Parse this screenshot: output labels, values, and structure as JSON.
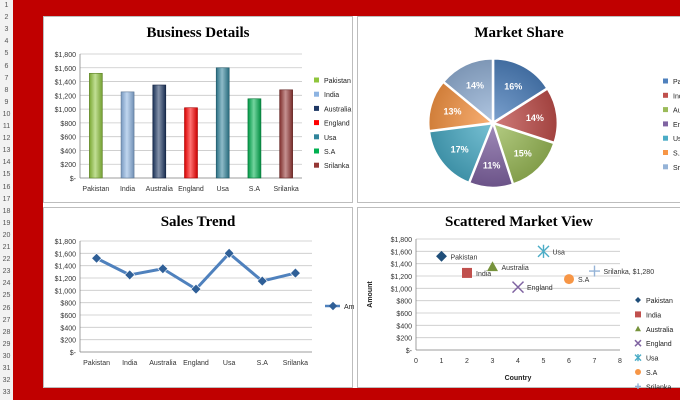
{
  "row_numbers": [
    "1",
    "2",
    "3",
    "4",
    "5",
    "6",
    "7",
    "8",
    "9",
    "10",
    "11",
    "12",
    "13",
    "14",
    "15",
    "16",
    "17",
    "18",
    "19",
    "20",
    "21",
    "22",
    "23",
    "24",
    "25",
    "26",
    "27",
    "28",
    "29",
    "30",
    "31",
    "32",
    "33"
  ],
  "chart_data": [
    {
      "type": "bar",
      "title": "Business Details",
      "categories": [
        "Pakistan",
        "India",
        "Australia",
        "England",
        "Usa",
        "S.A",
        "Srilanka"
      ],
      "values": [
        1520,
        1250,
        1350,
        1020,
        1600,
        1150,
        1280
      ],
      "colors": [
        "#8fc53c",
        "#8db4e2",
        "#1f3864",
        "#ff0000",
        "#31849b",
        "#00b050",
        "#953735"
      ],
      "ylim": [
        0,
        1800
      ],
      "yticks": [
        "$-",
        "$200",
        "$400",
        "$600",
        "$800",
        "$1,000",
        "$1,200",
        "$1,400",
        "$1,600",
        "$1,800"
      ],
      "grid": true,
      "legend_position": "right"
    },
    {
      "type": "pie",
      "title": "Market Share",
      "categories": [
        "Pakistan",
        "India",
        "Australia",
        "England",
        "Usa",
        "S.A",
        "Srilanka"
      ],
      "values": [
        16,
        14,
        15,
        11,
        17,
        13,
        14
      ],
      "labels": [
        "16%",
        "14%",
        "15%",
        "11%",
        "17%",
        "13%",
        "14%"
      ],
      "colors": [
        "#4f81bd",
        "#c0504d",
        "#9bbb59",
        "#8064a2",
        "#4bacc6",
        "#f79646",
        "#95b3d7"
      ],
      "legend_position": "right"
    },
    {
      "type": "line",
      "title": "Sales Trend",
      "categories": [
        "Pakistan",
        "India",
        "Australia",
        "England",
        "Usa",
        "S.A",
        "Srilanka"
      ],
      "series": [
        {
          "name": "Amount",
          "values": [
            1520,
            1250,
            1350,
            1020,
            1600,
            1150,
            1280
          ],
          "color": "#4f81bd"
        }
      ],
      "ylim": [
        0,
        1800
      ],
      "yticks": [
        "$-",
        "$200",
        "$400",
        "$600",
        "$800",
        "$1,000",
        "$1,200",
        "$1,400",
        "$1,600",
        "$1,800"
      ],
      "grid": true,
      "legend_position": "right"
    },
    {
      "type": "scatter",
      "title": "Scattered Market View",
      "xlabel": "Country",
      "ylabel": "Amount",
      "xlim": [
        0,
        8
      ],
      "ylim": [
        0,
        1800
      ],
      "xticks": [
        "0",
        "1",
        "2",
        "3",
        "4",
        "5",
        "6",
        "7",
        "8"
      ],
      "yticks": [
        "$-",
        "$200",
        "$400",
        "$600",
        "$800",
        "$1,000",
        "$1,200",
        "$1,400",
        "$1,600",
        "$1,800"
      ],
      "grid": true,
      "legend_position": "right",
      "series": [
        {
          "name": "Pakistan",
          "x": 1,
          "y": 1520,
          "label": "Pakistan",
          "marker": "diamond",
          "color": "#1f4e79"
        },
        {
          "name": "India",
          "x": 2,
          "y": 1250,
          "label": "India",
          "marker": "square",
          "color": "#c0504d"
        },
        {
          "name": "Australia",
          "x": 3,
          "y": 1350,
          "label": "Australia",
          "marker": "triangle",
          "color": "#77933c"
        },
        {
          "name": "England",
          "x": 4,
          "y": 1020,
          "label": "England",
          "marker": "x",
          "color": "#8064a2"
        },
        {
          "name": "Usa",
          "x": 5,
          "y": 1600,
          "label": "Usa",
          "marker": "star",
          "color": "#4bacc6"
        },
        {
          "name": "S.A",
          "x": 6,
          "y": 1150,
          "label": "S.A",
          "marker": "circle",
          "color": "#f79646"
        },
        {
          "name": "Srilanka",
          "x": 7,
          "y": 1280,
          "label": "Srilanka, $1,280",
          "marker": "plus",
          "color": "#95b3d7"
        }
      ]
    }
  ]
}
